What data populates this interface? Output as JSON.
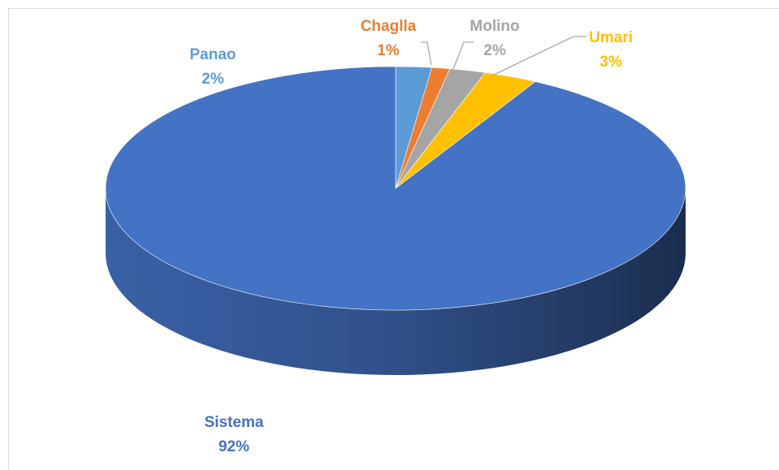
{
  "chart_data": {
    "type": "pie",
    "categories": [
      "Panao",
      "Chaglla",
      "Molino",
      "Umari",
      "Sistema"
    ],
    "values": [
      2,
      1,
      2,
      3,
      92
    ],
    "value_labels": [
      "2%",
      "1%",
      "2%",
      "3%",
      "92%"
    ],
    "colors": [
      "#5b9bd5",
      "#ed7d31",
      "#a5a5a5",
      "#ffc000",
      "#4472c4"
    ]
  }
}
